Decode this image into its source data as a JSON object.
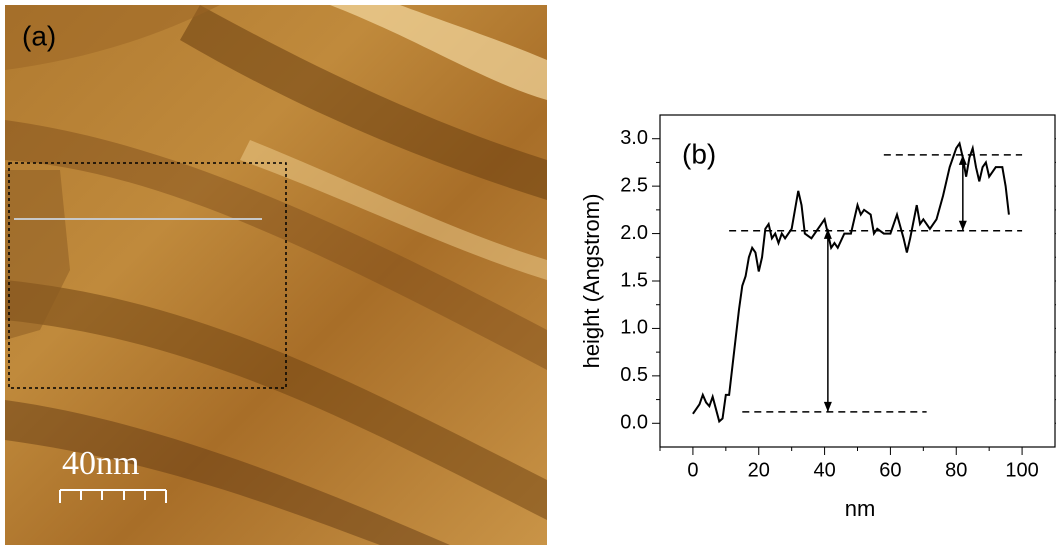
{
  "panel_a": {
    "label": "(a)",
    "scale_bar": "40nm"
  },
  "chart_data": {
    "type": "line",
    "annotation": "(b)",
    "xlabel": "nm",
    "ylabel": "height (Angstrom)",
    "x": [
      0,
      2,
      3,
      4,
      5,
      6,
      7,
      8,
      9,
      10,
      11,
      12,
      13,
      14,
      15,
      16,
      17,
      18,
      19,
      20,
      21,
      22,
      23,
      24,
      25,
      26,
      27,
      28,
      30,
      32,
      33,
      34,
      36,
      38,
      40,
      41,
      42,
      43,
      44,
      46,
      48,
      50,
      51,
      52,
      54,
      55,
      56,
      58,
      60,
      62,
      64,
      65,
      66,
      68,
      69,
      70,
      72,
      74,
      76,
      78,
      80,
      81,
      82,
      83,
      84,
      85,
      86,
      87,
      88,
      89,
      90,
      92,
      94,
      95,
      96
    ],
    "series": [
      {
        "color": "#000000",
        "values": [
          0.1,
          0.2,
          0.3,
          0.22,
          0.18,
          0.28,
          0.15,
          0.02,
          0.05,
          0.3,
          0.3,
          0.6,
          0.9,
          1.2,
          1.45,
          1.55,
          1.75,
          1.85,
          1.8,
          1.6,
          1.75,
          2.05,
          2.1,
          1.95,
          2.0,
          1.9,
          2.0,
          1.95,
          2.05,
          2.45,
          2.3,
          2.0,
          1.95,
          2.05,
          2.15,
          2.0,
          1.85,
          1.9,
          1.85,
          2.0,
          2.0,
          2.3,
          2.2,
          2.25,
          2.2,
          2.0,
          2.05,
          2.0,
          2.0,
          2.2,
          1.95,
          1.8,
          1.95,
          2.3,
          2.1,
          2.15,
          2.05,
          2.15,
          2.4,
          2.7,
          2.9,
          2.95,
          2.8,
          2.6,
          2.8,
          2.9,
          2.7,
          2.55,
          2.7,
          2.75,
          2.6,
          2.7,
          2.7,
          2.5,
          2.2
        ]
      }
    ],
    "reference_lines": [
      {
        "y": 0.12,
        "x": [
          15,
          71
        ]
      },
      {
        "y": 2.03,
        "x": [
          11,
          100
        ]
      },
      {
        "y": 2.83,
        "x": [
          58,
          100
        ]
      }
    ],
    "arrows": [
      {
        "x": 41,
        "y": [
          2.05,
          0.12
        ]
      },
      {
        "x": 82,
        "y": [
          2.83,
          2.03
        ]
      }
    ],
    "xlim": [
      -10,
      110
    ],
    "xticks": [
      0,
      20,
      40,
      60,
      80,
      100
    ],
    "ylim": [
      -0.25,
      3.25
    ],
    "yticks": [
      {
        "value": 0,
        "label": "0.0"
      },
      {
        "value": 0.5,
        "label": "0.5"
      },
      {
        "value": 1,
        "label": "1.0"
      },
      {
        "value": 1.5,
        "label": "1.5"
      },
      {
        "value": 2,
        "label": "2.0"
      },
      {
        "value": 2.5,
        "label": "2.5"
      },
      {
        "value": 3,
        "label": "3.0"
      }
    ]
  }
}
